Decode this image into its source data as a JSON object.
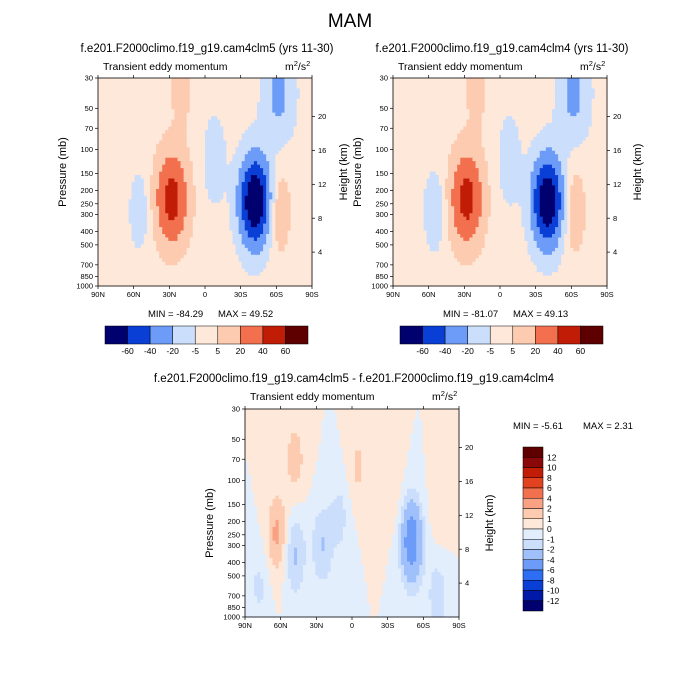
{
  "figure_title": "MAM",
  "chart_data": [
    {
      "type": "heatmap",
      "title": "f.e201.F2000climo.f19_g19.cam4clm5 (yrs 11-30)",
      "subtitle": "Transient eddy momentum",
      "units_base": "m",
      "units_sup1": "2",
      "units_mid": "/s",
      "units_sup2": "2",
      "ylabel": "Pressure (mb)",
      "ylabel_right": "Height (km)",
      "x_ticks": [
        "90N",
        "60N",
        "30N",
        "0",
        "30S",
        "60S",
        "90S"
      ],
      "y_ticks": [
        30,
        50,
        70,
        100,
        150,
        200,
        250,
        300,
        400,
        500,
        700,
        850,
        1000
      ],
      "height_ticks": [
        4,
        8,
        12,
        16,
        20
      ],
      "ylim": [
        1000,
        30
      ],
      "min_label": "MIN = -84.29",
      "max_label": "MAX = 49.52",
      "min": -84.29,
      "max": 49.52,
      "colorbar_levels": [
        -60,
        -40,
        -20,
        -5,
        5,
        20,
        40,
        60
      ],
      "features": [
        {
          "lat": 28,
          "p": 230,
          "peak": 49.5
        },
        {
          "lat": -42,
          "p": 240,
          "peak": -84.3
        },
        {
          "lat": -62,
          "p": 280,
          "peak": 18
        },
        {
          "lat": 55,
          "p": 280,
          "peak": -12
        },
        {
          "lat": -8,
          "p": 120,
          "peak": -15
        },
        {
          "lat": 20,
          "p": 35,
          "peak": 10
        },
        {
          "lat": -62,
          "p": 40,
          "peak": -25
        }
      ]
    },
    {
      "type": "heatmap",
      "title": "f.e201.F2000climo.f19_g19.cam4clm4 (yrs 11-30)",
      "subtitle": "Transient eddy momentum",
      "units_base": "m",
      "units_sup1": "2",
      "units_mid": "/s",
      "units_sup2": "2",
      "ylabel": "Pressure (mb)",
      "ylabel_right": "Height (km)",
      "x_ticks": [
        "90N",
        "60N",
        "30N",
        "0",
        "30S",
        "60S",
        "90S"
      ],
      "y_ticks": [
        30,
        50,
        70,
        100,
        150,
        200,
        250,
        300,
        400,
        500,
        700,
        850,
        1000
      ],
      "height_ticks": [
        4,
        8,
        12,
        16,
        20
      ],
      "ylim": [
        1000,
        30
      ],
      "min_label": "MIN = -81.07",
      "max_label": "MAX = 49.13",
      "min": -81.07,
      "max": 49.13,
      "colorbar_levels": [
        -60,
        -40,
        -20,
        -5,
        5,
        20,
        40,
        60
      ],
      "features": [
        {
          "lat": 28,
          "p": 230,
          "peak": 49.1
        },
        {
          "lat": -40,
          "p": 240,
          "peak": -81.1
        },
        {
          "lat": -62,
          "p": 280,
          "peak": 17
        },
        {
          "lat": 55,
          "p": 280,
          "peak": -14
        },
        {
          "lat": -8,
          "p": 120,
          "peak": -15
        },
        {
          "lat": 20,
          "p": 35,
          "peak": 10
        },
        {
          "lat": -62,
          "p": 40,
          "peak": -25
        }
      ]
    },
    {
      "type": "heatmap",
      "title": "f.e201.F2000climo.f19_g19.cam4clm5 - f.e201.F2000climo.f19_g19.cam4clm4",
      "subtitle": "Transient eddy momentum",
      "units_base": "m",
      "units_sup1": "2",
      "units_mid": "/s",
      "units_sup2": "2",
      "ylabel": "Pressure (mb)",
      "ylabel_right": "Height (km)",
      "x_ticks": [
        "90N",
        "60N",
        "30N",
        "0",
        "30S",
        "60S",
        "90S"
      ],
      "y_ticks": [
        30,
        50,
        70,
        100,
        150,
        200,
        250,
        300,
        400,
        500,
        700,
        850,
        1000
      ],
      "height_ticks": [
        4,
        8,
        12,
        16,
        20
      ],
      "ylim": [
        1000,
        30
      ],
      "min_label": "MIN = -5.61",
      "max_label": "MAX =   2.31",
      "min": -5.61,
      "max": 2.31,
      "colorbar_levels": [
        -12,
        -10,
        -8,
        -6,
        -4,
        -2,
        -1,
        0,
        1,
        2,
        4,
        6,
        8,
        10,
        12
      ],
      "features": [
        {
          "lat": -50,
          "p": 280,
          "peak": -5.6
        },
        {
          "lat": 63,
          "p": 250,
          "peak": 2.3
        },
        {
          "lat": 48,
          "p": 70,
          "peak": 1.5
        },
        {
          "lat": 48,
          "p": 350,
          "peak": -2.2
        },
        {
          "lat": 25,
          "p": 300,
          "peak": -2.0
        },
        {
          "lat": -72,
          "p": 700,
          "peak": -1.6
        },
        {
          "lat": -5,
          "p": 80,
          "peak": 1.2
        },
        {
          "lat": -35,
          "p": 120,
          "peak": 0.8
        },
        {
          "lat": 78,
          "p": 600,
          "peak": -1.2
        },
        {
          "lat": 10,
          "p": 180,
          "peak": -1.3
        },
        {
          "lat": -75,
          "p": 150,
          "peak": 1.0
        }
      ]
    }
  ],
  "palette": [
    "#00006e",
    "#0019a6",
    "#0a3fd6",
    "#2d6ef2",
    "#6c9cf7",
    "#9fc0fa",
    "#cbdefc",
    "#e3eefd",
    "#fde8da",
    "#fccbb0",
    "#f9a283",
    "#f3704f",
    "#e2421f",
    "#c01c06",
    "#8a0808",
    "#5e0000"
  ]
}
